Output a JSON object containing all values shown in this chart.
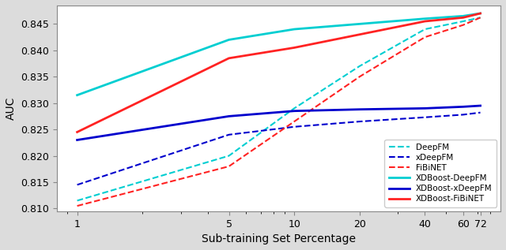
{
  "x": [
    1,
    5,
    10,
    20,
    40,
    60,
    72
  ],
  "DeepFM": [
    0.8115,
    0.82,
    0.829,
    0.837,
    0.844,
    0.8455,
    0.8462
  ],
  "xDeepFM": [
    0.8145,
    0.824,
    0.8255,
    0.8265,
    0.8273,
    0.8278,
    0.8282
  ],
  "FiBiNET": [
    0.8105,
    0.818,
    0.8265,
    0.835,
    0.8425,
    0.8448,
    0.8462
  ],
  "XDBoost_DeepFM": [
    0.8315,
    0.842,
    0.844,
    0.845,
    0.846,
    0.8465,
    0.847
  ],
  "XDBoost_xDeepFM": [
    0.823,
    0.8275,
    0.8285,
    0.8288,
    0.829,
    0.8293,
    0.8295
  ],
  "XDBoost_FiBiNET": [
    0.8245,
    0.8385,
    0.8405,
    0.843,
    0.8455,
    0.8462,
    0.847
  ],
  "colors": {
    "DeepFM": "#00CED1",
    "xDeepFM": "#0000CD",
    "FiBiNET": "#FF2222",
    "XDBoost_DeepFM": "#00CED1",
    "XDBoost_xDeepFM": "#0000CD",
    "XDBoost_FiBiNET": "#FF2222"
  },
  "xlabel": "Sub-training Set Percentage",
  "ylabel": "AUC",
  "ylim": [
    0.8095,
    0.8485
  ],
  "xticks": [
    1,
    5,
    10,
    20,
    40,
    60,
    72
  ],
  "xtick_labels": [
    "1",
    "5",
    "10",
    "20",
    "40",
    "60",
    "72"
  ]
}
